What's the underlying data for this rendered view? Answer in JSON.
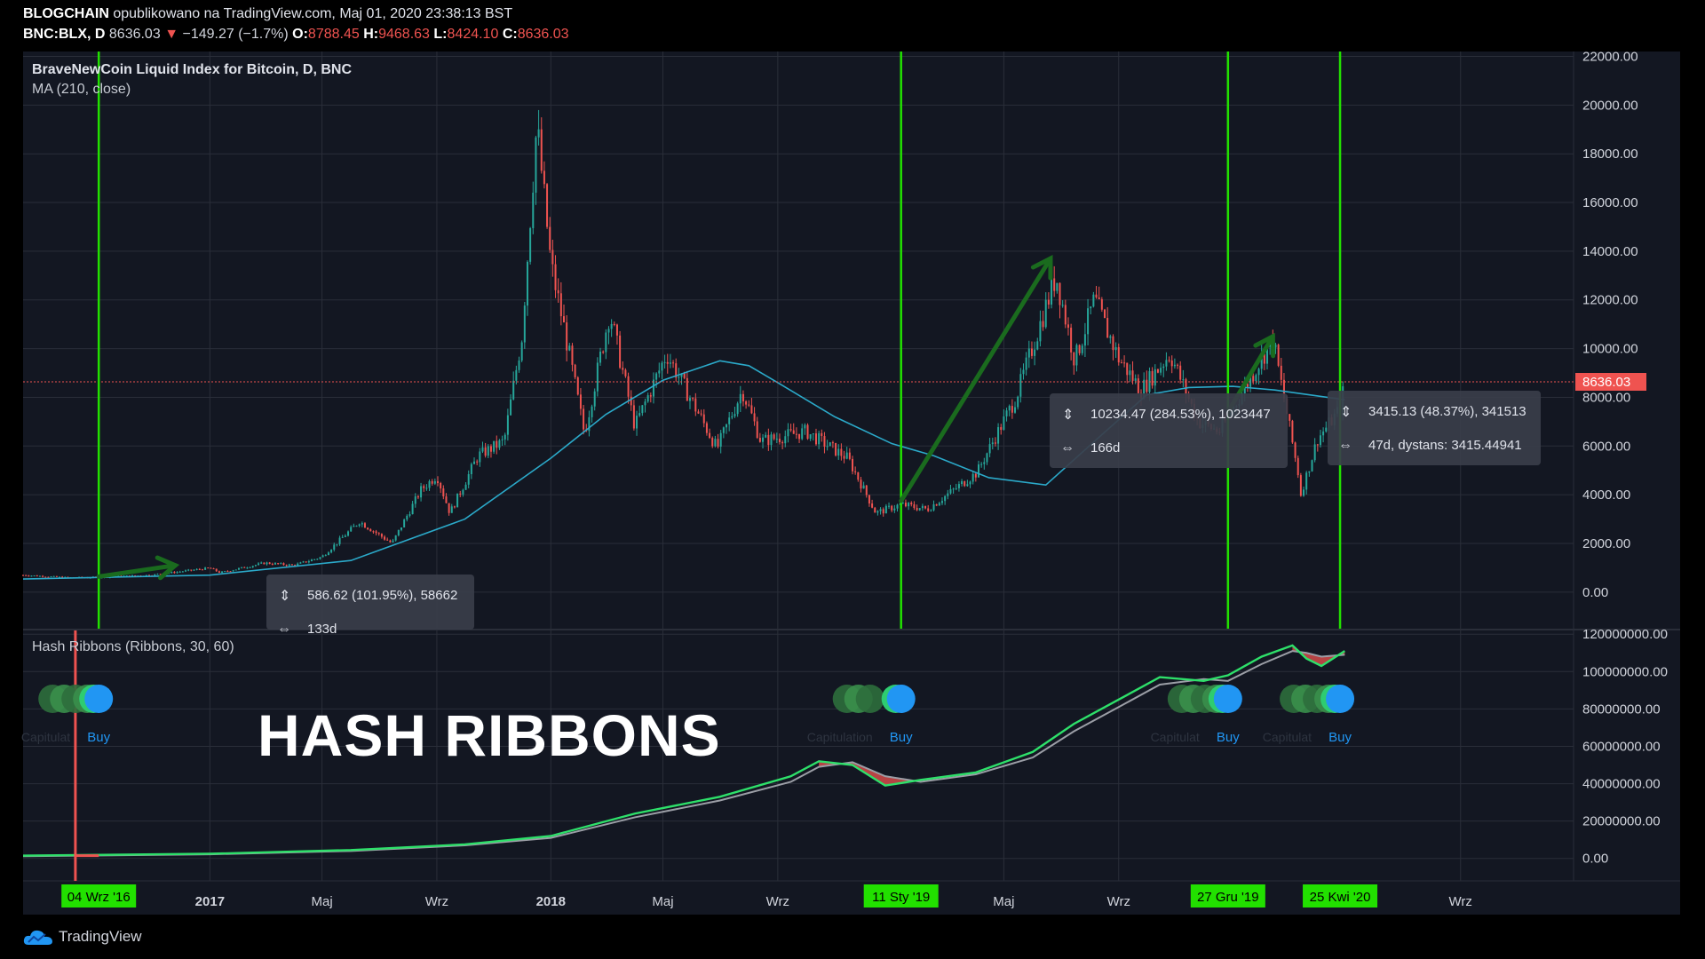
{
  "header": {
    "author": "BLOGCHAIN",
    "published": "opublikowano na TradingView.com, Maj 01, 2020 23:38:13 BST",
    "symbol": "BNC:BLX, D",
    "last": "8636.03",
    "change": "−149.27 (−1.7%)",
    "open_label": "O:",
    "open": "8788.45",
    "high_label": "H:",
    "high": "9468.63",
    "low_label": "L:",
    "low": "8424.10",
    "close_label": "C:",
    "close": "8636.03"
  },
  "main_panel": {
    "title": "BraveNewCoin Liquid Index for Bitcoin, D, BNC",
    "indicator": "MA (210, close)",
    "price_label": "8636.03"
  },
  "sub_panel": {
    "title": "Hash Ribbons (Ribbons, 30, 60)",
    "watermark": "HASH RIBBONS"
  },
  "measurements": [
    {
      "line1": "586.62 (101.95%), 58662",
      "line2": "133d"
    },
    {
      "line1": "10234.47 (284.53%), 1023447",
      "line2": "166d"
    },
    {
      "line1": "3415.13 (48.37%), 341513",
      "line2": "47d, dystans: 3415.44941"
    }
  ],
  "signals": [
    {
      "date_label": "04 Wrz '16",
      "capitulation": "Capitulat",
      "buy": "Buy"
    },
    {
      "date_label": "11 Sty '19",
      "capitulation": "Capitulation",
      "buy": "Buy"
    },
    {
      "date_label": "27 Gru '19",
      "capitulation": "Capitulat",
      "buy": "Buy"
    },
    {
      "date_label": "25 Kwi '20",
      "capitulation": "Capitulat",
      "buy": "Buy"
    }
  ],
  "footer": {
    "brand": "TradingView"
  },
  "colors": {
    "background": "#131722",
    "up": "#26a69a",
    "down": "#ef5350",
    "ma": "#2ba9c9",
    "signal_line": "#22e000",
    "ribbon_fast": "#2ee06a",
    "ribbon_slow": "#9b9ea6",
    "arrow": "#1a6b1e",
    "buy": "#2196f3"
  },
  "chart_data": [
    {
      "type": "candlestick",
      "title": "BraveNewCoin Liquid Index for Bitcoin, D, BNC",
      "x_ticks": [
        "2017",
        "Maj",
        "Wrz",
        "2018",
        "Maj",
        "Wrz",
        "Maj",
        "Wrz",
        "Wrz"
      ],
      "y_ticks": [
        "0.00",
        "2000.00",
        "4000.00",
        "6000.00",
        "8000.00",
        "10000.00",
        "12000.00",
        "14000.00",
        "16000.00",
        "18000.00",
        "20000.00",
        "22000.00"
      ],
      "ylim": [
        -1500,
        22200
      ],
      "price_series": [
        [
          "2016-06-15",
          700
        ],
        [
          "2016-08-01",
          600
        ],
        [
          "2016-09-04",
          605
        ],
        [
          "2016-11-01",
          710
        ],
        [
          "2017-01-01",
          990
        ],
        [
          "2017-01-12",
          800
        ],
        [
          "2017-03-01",
          1200
        ],
        [
          "2017-04-01",
          1100
        ],
        [
          "2017-05-01",
          1450
        ],
        [
          "2017-06-10",
          2900
        ],
        [
          "2017-07-15",
          2000
        ],
        [
          "2017-08-15",
          4200
        ],
        [
          "2017-09-01",
          4800
        ],
        [
          "2017-09-15",
          3250
        ],
        [
          "2017-10-15",
          5600
        ],
        [
          "2017-11-12",
          6200
        ],
        [
          "2017-12-01",
          10500
        ],
        [
          "2017-12-17",
          19200
        ],
        [
          "2018-01-01",
          13500
        ],
        [
          "2018-01-17",
          10500
        ],
        [
          "2018-02-06",
          6500
        ],
        [
          "2018-03-05",
          11500
        ],
        [
          "2018-04-01",
          6800
        ],
        [
          "2018-05-05",
          9800
        ],
        [
          "2018-06-28",
          5900
        ],
        [
          "2018-07-25",
          8300
        ],
        [
          "2018-08-14",
          6200
        ],
        [
          "2018-10-01",
          6600
        ],
        [
          "2018-11-15",
          5500
        ],
        [
          "2018-12-15",
          3250
        ],
        [
          "2019-01-11",
          3600
        ],
        [
          "2019-02-08",
          3400
        ],
        [
          "2019-04-02",
          4900
        ],
        [
          "2019-05-14",
          8000
        ],
        [
          "2019-06-26",
          13000
        ],
        [
          "2019-07-16",
          9500
        ],
        [
          "2019-08-06",
          12000
        ],
        [
          "2019-09-01",
          9600
        ],
        [
          "2019-09-25",
          8300
        ],
        [
          "2019-10-26",
          9800
        ],
        [
          "2019-11-25",
          7000
        ],
        [
          "2019-12-18",
          6600
        ],
        [
          "2019-12-27",
          7200
        ],
        [
          "2020-02-13",
          10400
        ],
        [
          "2020-03-12",
          4700
        ],
        [
          "2020-03-13",
          3900
        ],
        [
          "2020-04-01",
          6300
        ],
        [
          "2020-04-25",
          7500
        ],
        [
          "2020-04-30",
          8636
        ]
      ],
      "ma_series": [
        [
          "2016-06-15",
          540
        ],
        [
          "2017-01-01",
          700
        ],
        [
          "2017-06-01",
          1300
        ],
        [
          "2017-10-01",
          3000
        ],
        [
          "2018-01-01",
          5500
        ],
        [
          "2018-03-01",
          7300
        ],
        [
          "2018-05-01",
          8700
        ],
        [
          "2018-07-01",
          9500
        ],
        [
          "2018-08-01",
          9300
        ],
        [
          "2018-09-01",
          8600
        ],
        [
          "2018-11-01",
          7200
        ],
        [
          "2019-01-01",
          6100
        ],
        [
          "2019-02-15",
          5600
        ],
        [
          "2019-04-15",
          4700
        ],
        [
          "2019-06-15",
          4400
        ],
        [
          "2019-08-15",
          6500
        ],
        [
          "2019-10-01",
          8100
        ],
        [
          "2019-11-15",
          8400
        ],
        [
          "2020-01-01",
          8450
        ],
        [
          "2020-02-15",
          8300
        ],
        [
          "2020-04-30",
          7900
        ]
      ],
      "current_price": 8636.03,
      "signal_dates": [
        "2016-09-04",
        "2019-01-11",
        "2019-12-27",
        "2020-04-25"
      ]
    },
    {
      "type": "line",
      "title": "Hash Ribbons (Ribbons, 30, 60)",
      "y_ticks": [
        "0.00",
        "20000000.00",
        "40000000.00",
        "60000000.00",
        "80000000.00",
        "100000000.00",
        "120000000.00"
      ],
      "ylim": [
        -12000000,
        122000000
      ],
      "series": [
        {
          "values": [
            [
              "2016-06-15",
              1500000
            ],
            [
              "2017-01-01",
              2500000
            ],
            [
              "2017-06-01",
              4500000
            ],
            [
              "2017-10-01",
              7500000
            ],
            [
              "2018-01-01",
              12000000
            ],
            [
              "2018-04-01",
              24000000
            ],
            [
              "2018-07-01",
              33000000
            ],
            [
              "2018-09-15",
              44000000
            ],
            [
              "2018-10-15",
              52000000
            ],
            [
              "2018-11-20",
              50000000
            ],
            [
              "2018-12-25",
              39000000
            ],
            [
              "2019-02-01",
              42000000
            ],
            [
              "2019-04-01",
              46000000
            ],
            [
              "2019-06-01",
              57000000
            ],
            [
              "2019-07-15",
              72000000
            ],
            [
              "2019-09-01",
              85000000
            ],
            [
              "2019-10-15",
              97000000
            ],
            [
              "2019-12-01",
              95000000
            ],
            [
              "2019-12-27",
              98000000
            ],
            [
              "2020-02-01",
              108000000
            ],
            [
              "2020-03-05",
              114000000
            ],
            [
              "2020-03-20",
              107000000
            ],
            [
              "2020-04-05",
              103000000
            ],
            [
              "2020-04-30",
              111000000
            ]
          ]
        },
        {
          "values": [
            [
              "2016-06-15",
              1200000
            ],
            [
              "2017-01-01",
              2200000
            ],
            [
              "2017-06-01",
              4000000
            ],
            [
              "2017-10-01",
              7000000
            ],
            [
              "2018-01-01",
              11000000
            ],
            [
              "2018-04-01",
              22000000
            ],
            [
              "2018-07-01",
              31000000
            ],
            [
              "2018-09-15",
              41000000
            ],
            [
              "2018-10-15",
              49000000
            ],
            [
              "2018-11-20",
              51500000
            ],
            [
              "2018-12-25",
              44000000
            ],
            [
              "2019-02-01",
              41000000
            ],
            [
              "2019-04-01",
              45000000
            ],
            [
              "2019-06-01",
              54000000
            ],
            [
              "2019-07-15",
              68000000
            ],
            [
              "2019-09-01",
              81000000
            ],
            [
              "2019-10-15",
              93000000
            ],
            [
              "2019-12-01",
              96000000
            ],
            [
              "2019-12-27",
              95000000
            ],
            [
              "2020-02-01",
              104000000
            ],
            [
              "2020-03-05",
              111000000
            ],
            [
              "2020-03-20",
              110000000
            ],
            [
              "2020-04-05",
              108000000
            ],
            [
              "2020-04-30",
              109000000
            ]
          ]
        }
      ]
    }
  ]
}
